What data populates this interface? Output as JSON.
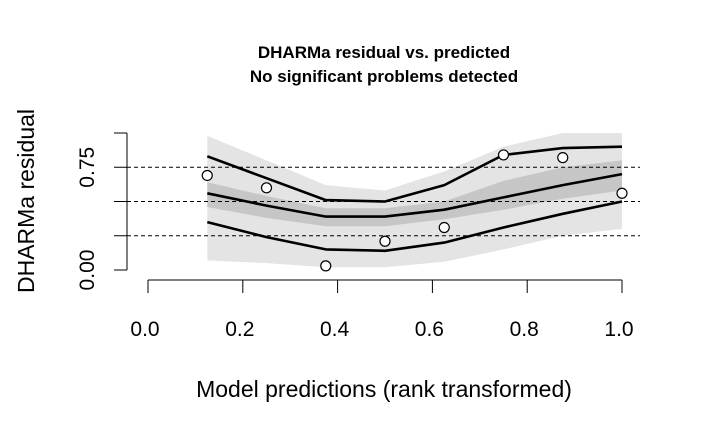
{
  "chart_data": {
    "type": "scatter",
    "title": "DHARMa residual vs. predicted",
    "subtitle": "No significant problems detected",
    "xlabel": "Model predictions (rank transformed)",
    "ylabel": "DHARMa residual",
    "xlim": [
      0,
      1
    ],
    "ylim": [
      0,
      1
    ],
    "x_ticks": [
      "0.0",
      "0.2",
      "0.4",
      "0.6",
      "0.8",
      "1.0"
    ],
    "y_ticks": [
      "0.00",
      "0.75"
    ],
    "x_tick_values": [
      0,
      0.2,
      0.4,
      0.6,
      0.8,
      1.0
    ],
    "y_tick_values": [
      0,
      0.75
    ],
    "reference_lines": [
      0.25,
      0.5,
      0.75
    ],
    "points": {
      "x": [
        0.125,
        0.25,
        0.375,
        0.5,
        0.625,
        0.75,
        0.875,
        1.0
      ],
      "y": [
        0.69,
        0.6,
        0.03,
        0.21,
        0.31,
        0.84,
        0.82,
        0.56
      ]
    },
    "quantile_curves": {
      "x": [
        0.125,
        0.25,
        0.375,
        0.5,
        0.625,
        0.75,
        0.875,
        1.0
      ],
      "q25": [
        0.35,
        0.24,
        0.15,
        0.14,
        0.2,
        0.31,
        0.41,
        0.5
      ],
      "q50": [
        0.56,
        0.47,
        0.39,
        0.39,
        0.44,
        0.53,
        0.62,
        0.7
      ],
      "q75": [
        0.83,
        0.67,
        0.51,
        0.5,
        0.62,
        0.84,
        0.89,
        0.9
      ]
    },
    "confidence_bands": [
      {
        "x": [
          0.125,
          0.25,
          0.375,
          0.5,
          0.625,
          0.75,
          0.875,
          1.0
        ],
        "lower": [
          0.07,
          0.05,
          0.02,
          0.02,
          0.06,
          0.15,
          0.25,
          0.3
        ],
        "upper": [
          0.98,
          0.8,
          0.62,
          0.58,
          0.72,
          0.9,
          1.0,
          1.0
        ]
      },
      {
        "x": [
          0.125,
          0.25,
          0.375,
          0.5,
          0.625,
          0.75,
          0.875,
          1.0
        ],
        "lower": [
          0.46,
          0.38,
          0.32,
          0.32,
          0.37,
          0.44,
          0.52,
          0.58
        ],
        "upper": [
          0.64,
          0.54,
          0.45,
          0.45,
          0.5,
          0.65,
          0.75,
          0.8
        ]
      }
    ],
    "colors": {
      "outer_band": "#e4e4e4",
      "inner_band": "#c6c6c6",
      "curve": "#000000",
      "reference_line": "#000000",
      "point_fill": "#ffffff",
      "point_stroke": "#000000"
    }
  }
}
